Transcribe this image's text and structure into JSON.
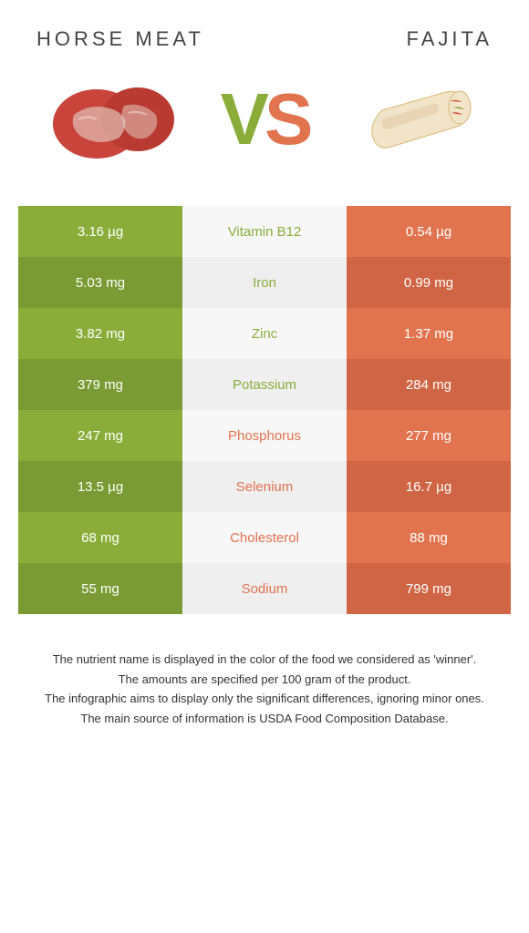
{
  "food_left": {
    "name": "Horse meat",
    "color": "#8aad3a",
    "color_dark": "#7a9a33"
  },
  "food_right": {
    "name": "Fajita",
    "color": "#e2734f",
    "color_dark": "#cf6544"
  },
  "vs_label": {
    "v": "V",
    "s": "S"
  },
  "nutrients": [
    {
      "name": "Vitamin B12",
      "left": "3.16 µg",
      "right": "0.54 µg",
      "winner": "left"
    },
    {
      "name": "Iron",
      "left": "5.03 mg",
      "right": "0.99 mg",
      "winner": "left"
    },
    {
      "name": "Zinc",
      "left": "3.82 mg",
      "right": "1.37 mg",
      "winner": "left"
    },
    {
      "name": "Potassium",
      "left": "379 mg",
      "right": "284 mg",
      "winner": "left"
    },
    {
      "name": "Phosphorus",
      "left": "247 mg",
      "right": "277 mg",
      "winner": "right"
    },
    {
      "name": "Selenium",
      "left": "13.5 µg",
      "right": "16.7 µg",
      "winner": "right"
    },
    {
      "name": "Cholesterol",
      "left": "68 mg",
      "right": "88 mg",
      "winner": "right"
    },
    {
      "name": "Sodium",
      "left": "55 mg",
      "right": "799 mg",
      "winner": "right"
    }
  ],
  "footer": [
    "The nutrient name is displayed in the color of the food we considered as 'winner'.",
    "The amounts are specified per 100 gram of the product.",
    "The infographic aims to display only the significant differences, ignoring minor ones.",
    "The main source of information is USDA Food Composition Database."
  ],
  "colors": {
    "left_alt": [
      "#8aad3a",
      "#7a9a33"
    ],
    "right_alt": [
      "#e2734f",
      "#cf6544"
    ],
    "center_alt": [
      "#f7f7f7",
      "#efefef"
    ]
  }
}
